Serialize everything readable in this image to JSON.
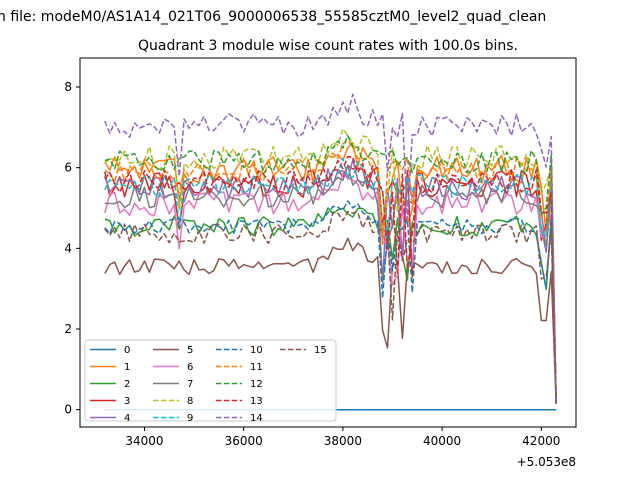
{
  "suptitle": "n file: modeM0/AS1A14_021T06_9000006538_55585cztM0_level2_quad_clean",
  "chart_data": {
    "type": "line",
    "title": "Quadrant 3 module wise count rates with 100.0s bins.",
    "xlabel": "",
    "ylabel": "",
    "x_offset_label": "+5.053e8",
    "xlim": [
      32700,
      42700
    ],
    "ylim": [
      -0.43,
      8.72
    ],
    "xticks": [
      34000,
      36000,
      38000,
      40000,
      42000
    ],
    "xtick_labels": [
      "34000",
      "36000",
      "38000",
      "40000",
      "42000"
    ],
    "yticks": [
      0,
      2,
      4,
      6,
      8
    ],
    "ytick_labels": [
      "0",
      "2",
      "4",
      "6",
      "8"
    ],
    "grid": false,
    "legend_position": "lower-left",
    "legend_columns": 4,
    "x_start": 33200,
    "x_step": 100,
    "n_points": 91,
    "series": [
      {
        "name": "0",
        "color": "#1f77b4",
        "dash": "solid",
        "baseline": 0.0,
        "noise": 0.0
      },
      {
        "name": "1",
        "color": "#ff7f0e",
        "dash": "solid",
        "baseline": 5.95,
        "noise": 0.35
      },
      {
        "name": "2",
        "color": "#2ca02c",
        "dash": "solid",
        "baseline": 4.55,
        "noise": 0.25
      },
      {
        "name": "3",
        "color": "#d62728",
        "dash": "solid",
        "baseline": 5.6,
        "noise": 0.35
      },
      {
        "name": "4",
        "color": "#9467bd",
        "dash": "solid",
        "baseline": 5.5,
        "noise": 0.3
      },
      {
        "name": "5",
        "color": "#8c564b",
        "dash": "solid",
        "baseline": 3.55,
        "noise": 0.2
      },
      {
        "name": "6",
        "color": "#e377c2",
        "dash": "solid",
        "baseline": 5.1,
        "noise": 0.3
      },
      {
        "name": "7",
        "color": "#7f7f7f",
        "dash": "solid",
        "baseline": 5.3,
        "noise": 0.3
      },
      {
        "name": "8",
        "color": "#bcbd22",
        "dash": "dashed",
        "baseline": 6.25,
        "noise": 0.3
      },
      {
        "name": "9",
        "color": "#17becf",
        "dash": "dashed",
        "baseline": 5.55,
        "noise": 0.3
      },
      {
        "name": "10",
        "color": "#1f77b4",
        "dash": "dashed",
        "baseline": 4.55,
        "noise": 0.2
      },
      {
        "name": "11",
        "color": "#ff7f0e",
        "dash": "dashed",
        "baseline": 5.95,
        "noise": 0.3
      },
      {
        "name": "12",
        "color": "#2ca02c",
        "dash": "dashed",
        "baseline": 6.15,
        "noise": 0.3
      },
      {
        "name": "13",
        "color": "#d62728",
        "dash": "dashed",
        "baseline": 5.65,
        "noise": 0.3
      },
      {
        "name": "14",
        "color": "#9467bd",
        "dash": "dashed",
        "baseline": 7.05,
        "noise": 0.3
      },
      {
        "name": "15",
        "color": "#8c564b",
        "dash": "dashed",
        "baseline": 4.35,
        "noise": 0.25
      }
    ]
  }
}
